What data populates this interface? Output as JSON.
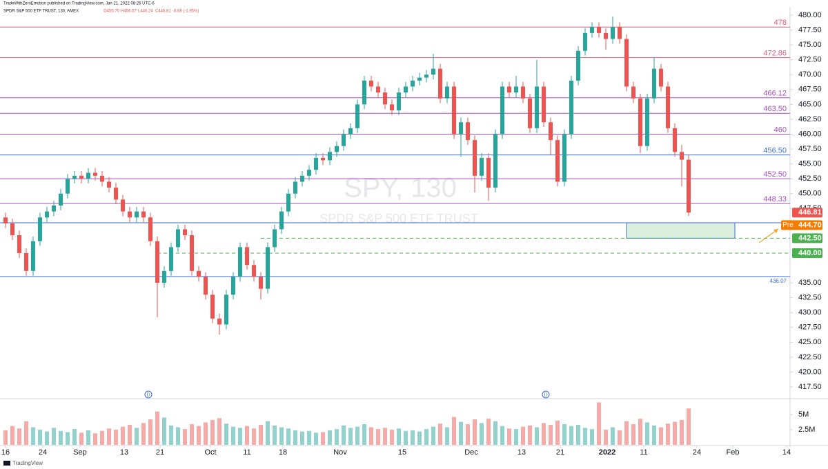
{
  "chart_data": {
    "type": "candlestick",
    "header": {
      "publisher": "TradeWithZeroEmotion published on TradingView.com, Jan 21, 2022 08:26 UTC-6",
      "symbol": "SPDR S&P 500 ETF TRUST, 130, AMEX",
      "ohlc": [
        "O455.70",
        "H456.57",
        "L446.24",
        "C446.81",
        "-8.88 (-1.95%)"
      ]
    },
    "watermark": {
      "ticker": "SPY, 130",
      "name": "SPDR S&P 500 ETF TRUST"
    },
    "footer": "TradingView",
    "up_color": "#26a69a",
    "down_color": "#ef5350",
    "x": [
      0,
      1,
      2,
      3,
      4,
      5,
      6,
      7,
      8,
      9,
      10,
      11,
      12,
      13,
      14,
      15,
      16,
      17,
      18,
      19,
      20,
      21,
      22,
      23,
      24,
      25,
      26,
      27,
      28,
      29,
      30,
      31,
      32,
      33,
      34,
      35,
      36,
      37,
      38,
      39,
      40,
      41,
      42,
      43,
      44,
      45,
      46,
      47,
      48,
      49,
      50,
      51,
      52,
      53,
      54,
      55,
      56,
      57,
      58,
      59,
      60,
      61,
      62,
      63,
      64,
      65,
      66,
      67,
      68,
      69,
      70,
      71,
      72,
      73,
      74,
      75,
      76,
      77,
      78,
      79,
      80,
      81,
      82,
      83,
      84,
      85,
      86,
      87,
      88,
      89,
      90,
      91,
      92,
      93,
      94,
      95,
      96,
      97,
      98,
      99
    ],
    "open": [
      446,
      445,
      443,
      440,
      437,
      442,
      446,
      447,
      448,
      450,
      452.5,
      453,
      452.5,
      453.5,
      453,
      452,
      451,
      449,
      447,
      446,
      447,
      446,
      442,
      435,
      437,
      441,
      444,
      443,
      437,
      436,
      433,
      429,
      428,
      433,
      436,
      441,
      438,
      436,
      434,
      441,
      444,
      447,
      450,
      452,
      453,
      454,
      456,
      455.6,
      457,
      458,
      460,
      461,
      465,
      469,
      468,
      467,
      465,
      464,
      467,
      468,
      469,
      469.5,
      470,
      471,
      466,
      468,
      460,
      462,
      459,
      453,
      456,
      451,
      460,
      468,
      467,
      468,
      466,
      461,
      468,
      462,
      459,
      452,
      460,
      469,
      474,
      477,
      478,
      477,
      476,
      478,
      476,
      468,
      466,
      458,
      466,
      471,
      468,
      461,
      457,
      455.7
    ],
    "high": [
      446.8,
      445.8,
      443.8,
      440.8,
      442.8,
      446.8,
      447.8,
      448.8,
      450.8,
      453.3,
      453.8,
      453.8,
      454.3,
      454.3,
      453.8,
      452.8,
      451.8,
      449.8,
      447.8,
      447.8,
      447.8,
      446.8,
      442.8,
      437.8,
      441.8,
      444.8,
      444.8,
      443.8,
      437.8,
      436.8,
      433.8,
      429.8,
      433.8,
      436.8,
      441.8,
      441.8,
      438.8,
      436.8,
      441.8,
      444.8,
      447.8,
      450.8,
      452.8,
      453.8,
      454.8,
      456.8,
      456.8,
      457.8,
      458.8,
      460.8,
      461.8,
      465.8,
      469.8,
      469.8,
      468.8,
      467.8,
      465.8,
      467.8,
      468.8,
      469.8,
      470.3,
      470.8,
      473.5,
      471.8,
      468.8,
      468.8,
      462.8,
      462.8,
      459.8,
      456.8,
      456.8,
      460.8,
      468.8,
      468.8,
      469.8,
      468.8,
      466.8,
      472.5,
      468.8,
      462.8,
      459.8,
      460.8,
      469.8,
      474.8,
      477.8,
      478.8,
      478.8,
      477.8,
      479.8,
      478.8,
      476.8,
      468.8,
      466.8,
      466.8,
      472.8,
      471.8,
      468.8,
      461.8,
      458.2,
      456.57
    ],
    "low": [
      444.2,
      442.2,
      439.2,
      436.2,
      436.2,
      441.2,
      445.2,
      446.2,
      447.2,
      449.2,
      451.7,
      451.7,
      451.7,
      452.2,
      451.2,
      450.2,
      448.2,
      446.2,
      445.2,
      445.2,
      445.2,
      441.2,
      429.2,
      434.2,
      436.2,
      440.2,
      442.2,
      436.2,
      435.2,
      432.2,
      428.2,
      426.3,
      427.2,
      432.2,
      435.2,
      437.2,
      435.2,
      432.2,
      433.2,
      440.2,
      443.2,
      446.2,
      449.2,
      451.2,
      452.2,
      453.2,
      454.8,
      454.8,
      456.2,
      457.2,
      459.2,
      460.2,
      464.2,
      467.2,
      466.2,
      464.2,
      463.2,
      463.2,
      466.2,
      467.2,
      468.2,
      468.7,
      469.2,
      465.2,
      465.2,
      459.2,
      456.2,
      458.2,
      450.2,
      452.2,
      448.8,
      450.2,
      459.2,
      466.2,
      466.2,
      465.2,
      460.2,
      460.2,
      461.2,
      456.5,
      451.2,
      451.2,
      459.2,
      468.2,
      473.2,
      476.2,
      476.2,
      474.2,
      475.2,
      475.2,
      467.2,
      465.2,
      456.8,
      457.2,
      465.2,
      467.2,
      460.2,
      456.2,
      451.2,
      446.24
    ],
    "close": [
      445,
      443,
      440,
      437,
      442,
      446,
      447,
      448,
      450,
      452.5,
      453,
      452.5,
      453.5,
      453,
      452,
      451,
      449,
      447,
      446,
      447,
      446,
      442,
      435,
      437,
      441,
      444,
      443,
      437,
      436,
      433,
      429,
      428,
      433,
      436,
      441,
      438,
      436,
      434,
      441,
      444,
      447,
      450,
      452,
      453,
      454,
      456,
      455.6,
      457,
      458,
      460,
      461,
      465,
      469,
      468,
      467,
      465,
      464,
      467,
      468,
      469,
      469.5,
      470,
      471,
      466,
      468,
      460,
      462,
      459,
      453,
      456,
      451,
      460,
      468,
      467,
      468,
      466,
      461,
      468,
      462,
      459,
      452,
      460,
      469,
      474,
      477,
      478,
      477,
      476,
      478,
      476,
      468,
      466,
      458,
      466,
      471,
      468,
      461,
      457,
      455.7,
      446.81
    ],
    "volume": [
      2400000,
      3100000,
      2700000,
      3900000,
      2900000,
      2500000,
      2200000,
      2800000,
      2300000,
      2100000,
      2600000,
      2000000,
      2400000,
      1900000,
      2300000,
      2700000,
      2500000,
      3000000,
      3300000,
      2800000,
      3600000,
      4200000,
      5500000,
      4500000,
      3200000,
      2900000,
      2600000,
      3400000,
      3100000,
      3700000,
      4100000,
      4400000,
      3500000,
      3000000,
      2800000,
      3100000,
      2700000,
      3300000,
      3900000,
      3200000,
      2900000,
      2700000,
      2400000,
      2200000,
      2300000,
      2000000,
      2100000,
      2400000,
      2600000,
      3200000,
      2800000,
      3000000,
      3400000,
      2900000,
      2600000,
      2800000,
      2500000,
      2700000,
      2300000,
      2400000,
      2200000,
      2600000,
      3000000,
      3500000,
      2900000,
      4600000,
      3800000,
      3400000,
      4200000,
      3600000,
      4300000,
      3900000,
      3100000,
      2700000,
      2600000,
      3000000,
      3200000,
      2900000,
      3600000,
      3300000,
      4000000,
      3400000,
      3100000,
      3300000,
      2800000,
      2600000,
      7000000,
      2500000,
      2900000,
      2400000,
      3900000,
      3400000,
      4300000,
      3700000,
      3200000,
      2900000,
      3500000,
      3800000,
      4100000,
      6000000
    ],
    "xlim": [
      -0.8,
      113.7
    ],
    "xticks": [
      {
        "value": 0,
        "label": "16"
      },
      {
        "value": 5.4,
        "label": "24"
      },
      {
        "value": 10.8,
        "label": "Sep"
      },
      {
        "value": 17.2,
        "label": "13"
      },
      {
        "value": 22.4,
        "label": "21"
      },
      {
        "value": 29.7,
        "label": "Oct"
      },
      {
        "value": 35,
        "label": "11"
      },
      {
        "value": 40.2,
        "label": "18"
      },
      {
        "value": 48.5,
        "label": "Nov"
      },
      {
        "value": 57.5,
        "label": "15"
      },
      {
        "value": 67.5,
        "label": "Dec"
      },
      {
        "value": 74.8,
        "label": "13"
      },
      {
        "value": 80.4,
        "label": "21"
      },
      {
        "value": 87.2,
        "label": "2022"
      },
      {
        "value": 92.5,
        "label": "11"
      },
      {
        "value": 100.2,
        "label": "24"
      },
      {
        "value": 105.4,
        "label": "Feb"
      },
      {
        "value": 113.2,
        "label": "14"
      }
    ],
    "ylim": [
      415.53,
      481.39
    ],
    "yticks": [
      {
        "value": 480,
        "label": "480.00"
      },
      {
        "value": 477.5,
        "label": "477.50"
      },
      {
        "value": 475,
        "label": "475.00"
      },
      {
        "value": 472.5,
        "label": "472.50"
      },
      {
        "value": 470,
        "label": "470.00"
      },
      {
        "value": 467.5,
        "label": "467.50"
      },
      {
        "value": 465,
        "label": "465.00"
      },
      {
        "value": 462.5,
        "label": "462.50"
      },
      {
        "value": 460,
        "label": "460.00"
      },
      {
        "value": 457.5,
        "label": "457.50"
      },
      {
        "value": 455,
        "label": "455.00"
      },
      {
        "value": 452.5,
        "label": "452.50"
      },
      {
        "value": 450,
        "label": "450.00"
      },
      {
        "value": 447.5,
        "label": "447.50"
      },
      {
        "value": 435,
        "label": "435.00"
      },
      {
        "value": 432.5,
        "label": "432.50"
      },
      {
        "value": 430,
        "label": "430.00"
      },
      {
        "value": 427.5,
        "label": "427.50"
      },
      {
        "value": 425,
        "label": "425.00"
      },
      {
        "value": 422.5,
        "label": "422.50"
      },
      {
        "value": 420,
        "label": "420.00"
      },
      {
        "value": 417.5,
        "label": "417.50"
      }
    ],
    "volume_ylim": [
      0,
      7390000
    ],
    "volume_ticks": [
      {
        "value": 5000000,
        "label": "5M"
      },
      {
        "value": 2500000,
        "label": "2.5M"
      }
    ],
    "levels": [
      {
        "price": 478,
        "label": "478",
        "color": "#e0577a"
      },
      {
        "price": 472.86,
        "label": "472.86",
        "color": "#e0577a"
      },
      {
        "price": 466.12,
        "label": "466.12",
        "color": "#a64dbf"
      },
      {
        "price": 463.5,
        "label": "463.50",
        "color": "#a64dbf"
      },
      {
        "price": 460,
        "label": "460",
        "color": "#a64dbf"
      },
      {
        "price": 456.5,
        "label": "456.50",
        "color": "#3d6ed8"
      },
      {
        "price": 452.5,
        "label": "452.50",
        "color": "#a64dbf"
      },
      {
        "price": 448.33,
        "label": "448.33",
        "color": "#a64dbf"
      },
      {
        "price": 445.1,
        "color": "#3d6ed8"
      },
      {
        "price": 436.07,
        "label": "436.07",
        "color": "#3d6ed8",
        "label_position": "below"
      }
    ],
    "dashed_levels": [
      {
        "price": 442.5,
        "start": 37,
        "color": "#4caf50"
      },
      {
        "price": 440,
        "start": 22,
        "color": "#4caf50"
      }
    ],
    "zone": {
      "x0": 90,
      "x1": 105.7,
      "top": 445.1,
      "bottom": 442.5,
      "color": "#4caf50"
    },
    "events": [
      {
        "x": 20.7,
        "label": "D"
      },
      {
        "x": 78.3,
        "label": "D"
      }
    ],
    "price_tags": [
      {
        "price": 446.81,
        "label": "446.81",
        "color": "#ef5350"
      },
      {
        "price": 444.7,
        "label": "444.70",
        "prefix": "Pre",
        "color": "#f57c00"
      },
      {
        "price": 442.5,
        "label": "442.50",
        "color": "#4caf50"
      },
      {
        "price": 440,
        "label": "440.00",
        "color": "#4caf50"
      }
    ]
  }
}
